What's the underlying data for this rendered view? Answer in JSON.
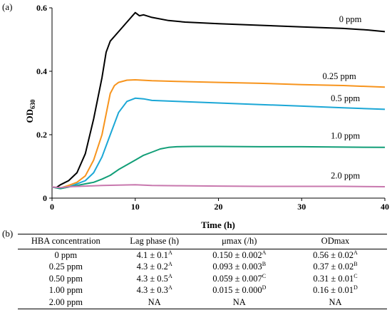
{
  "panel_a_label": "(a)",
  "panel_b_label": "(b)",
  "chart_data": {
    "type": "line",
    "title": "",
    "xlabel": "Time (h)",
    "ylabel_main": "OD",
    "ylabel_sub": "630",
    "xlim": [
      0,
      40
    ],
    "ylim": [
      0,
      0.6
    ],
    "xticks": [
      0,
      10,
      20,
      30,
      40
    ],
    "yticks": [
      0,
      0.2,
      0.4,
      0.6
    ],
    "ytick_labels": [
      "0",
      "0.2",
      "0.4",
      "0.6"
    ],
    "grid": false,
    "series": [
      {
        "name": "0 ppm",
        "color": "#000000",
        "points": [
          [
            0,
            0.035
          ],
          [
            0.5,
            0.033
          ],
          [
            1,
            0.042
          ],
          [
            2,
            0.055
          ],
          [
            3,
            0.08
          ],
          [
            4,
            0.14
          ],
          [
            5,
            0.25
          ],
          [
            6,
            0.38
          ],
          [
            6.5,
            0.46
          ],
          [
            7,
            0.495
          ],
          [
            8,
            0.525
          ],
          [
            9,
            0.555
          ],
          [
            9.5,
            0.57
          ],
          [
            10,
            0.585
          ],
          [
            10.5,
            0.575
          ],
          [
            11,
            0.578
          ],
          [
            12,
            0.57
          ],
          [
            14,
            0.56
          ],
          [
            16,
            0.555
          ],
          [
            20,
            0.55
          ],
          [
            25,
            0.545
          ],
          [
            30,
            0.54
          ],
          [
            35,
            0.535
          ],
          [
            38,
            0.53
          ],
          [
            40,
            0.525
          ]
        ]
      },
      {
        "name": "0.25 ppm",
        "color": "#F7941D",
        "points": [
          [
            0,
            0.035
          ],
          [
            1,
            0.032
          ],
          [
            2,
            0.04
          ],
          [
            3,
            0.05
          ],
          [
            4,
            0.07
          ],
          [
            5,
            0.12
          ],
          [
            6,
            0.2
          ],
          [
            7,
            0.33
          ],
          [
            7.5,
            0.355
          ],
          [
            8,
            0.365
          ],
          [
            9,
            0.372
          ],
          [
            10,
            0.373
          ],
          [
            12,
            0.37
          ],
          [
            15,
            0.368
          ],
          [
            20,
            0.365
          ],
          [
            25,
            0.362
          ],
          [
            30,
            0.358
          ],
          [
            35,
            0.355
          ],
          [
            40,
            0.35
          ]
        ]
      },
      {
        "name": "0.5 ppm",
        "color": "#1BA7D6",
        "points": [
          [
            0,
            0.035
          ],
          [
            1,
            0.03
          ],
          [
            2,
            0.035
          ],
          [
            3,
            0.045
          ],
          [
            4,
            0.055
          ],
          [
            5,
            0.08
          ],
          [
            6,
            0.13
          ],
          [
            7,
            0.2
          ],
          [
            8,
            0.27
          ],
          [
            9,
            0.305
          ],
          [
            10,
            0.315
          ],
          [
            11,
            0.313
          ],
          [
            12,
            0.308
          ],
          [
            15,
            0.305
          ],
          [
            20,
            0.3
          ],
          [
            25,
            0.295
          ],
          [
            30,
            0.29
          ],
          [
            35,
            0.285
          ],
          [
            40,
            0.28
          ]
        ]
      },
      {
        "name": "1.0 ppm",
        "color": "#119E77",
        "points": [
          [
            0,
            0.035
          ],
          [
            1,
            0.03
          ],
          [
            2,
            0.035
          ],
          [
            3,
            0.04
          ],
          [
            4,
            0.045
          ],
          [
            5,
            0.05
          ],
          [
            6,
            0.06
          ],
          [
            7,
            0.072
          ],
          [
            8,
            0.09
          ],
          [
            9,
            0.105
          ],
          [
            10,
            0.12
          ],
          [
            11,
            0.135
          ],
          [
            12,
            0.145
          ],
          [
            13,
            0.155
          ],
          [
            14,
            0.16
          ],
          [
            15,
            0.162
          ],
          [
            17,
            0.163
          ],
          [
            20,
            0.163
          ],
          [
            25,
            0.162
          ],
          [
            30,
            0.162
          ],
          [
            35,
            0.161
          ],
          [
            40,
            0.16
          ]
        ]
      },
      {
        "name": "2.0 ppm",
        "color": "#C878AE",
        "points": [
          [
            0,
            0.035
          ],
          [
            1,
            0.033
          ],
          [
            2,
            0.036
          ],
          [
            4,
            0.038
          ],
          [
            6,
            0.04
          ],
          [
            8,
            0.041
          ],
          [
            10,
            0.042
          ],
          [
            12,
            0.04
          ],
          [
            15,
            0.039
          ],
          [
            20,
            0.038
          ],
          [
            25,
            0.037
          ],
          [
            30,
            0.037
          ],
          [
            35,
            0.037
          ],
          [
            40,
            0.036
          ]
        ]
      }
    ],
    "annotations": [
      {
        "text": "0 ppm",
        "x": 34.5,
        "y": 0.555
      },
      {
        "text": "0.25 ppm",
        "x": 32.5,
        "y": 0.375
      },
      {
        "text": "0.5 ppm",
        "x": 33.5,
        "y": 0.306
      },
      {
        "text": "1.0 ppm",
        "x": 33.5,
        "y": 0.188
      },
      {
        "text": "2.0 ppm",
        "x": 33.5,
        "y": 0.062
      }
    ]
  },
  "table": {
    "headers": [
      "HBA concentration",
      "Lag phase (h)",
      "μmax (/h)",
      "ODmax"
    ],
    "rows": [
      [
        {
          "v": "0 ppm",
          "s": ""
        },
        {
          "v": "4.1 ± 0.1",
          "s": "A"
        },
        {
          "v": "0.150 ± 0.002",
          "s": "A"
        },
        {
          "v": "0.56 ± 0.02",
          "s": "A"
        }
      ],
      [
        {
          "v": "0.25 ppm",
          "s": ""
        },
        {
          "v": "4.3 ± 0.2",
          "s": "A"
        },
        {
          "v": "0.093 ± 0.003",
          "s": "B"
        },
        {
          "v": "0.37 ± 0.02",
          "s": "B"
        }
      ],
      [
        {
          "v": "0.50 ppm",
          "s": ""
        },
        {
          "v": "4.3 ± 0.5",
          "s": "A"
        },
        {
          "v": "0.059 ± 0.007",
          "s": "C"
        },
        {
          "v": "0.31 ± 0.01",
          "s": "C"
        }
      ],
      [
        {
          "v": "1.00 ppm",
          "s": ""
        },
        {
          "v": "4.3 ± 0.3",
          "s": "A"
        },
        {
          "v": "0.015 ± 0.000",
          "s": "D"
        },
        {
          "v": "0.16 ± 0.01",
          "s": "D"
        }
      ],
      [
        {
          "v": "2.00 ppm",
          "s": ""
        },
        {
          "v": "NA",
          "s": ""
        },
        {
          "v": "NA",
          "s": ""
        },
        {
          "v": "NA",
          "s": ""
        }
      ]
    ]
  }
}
